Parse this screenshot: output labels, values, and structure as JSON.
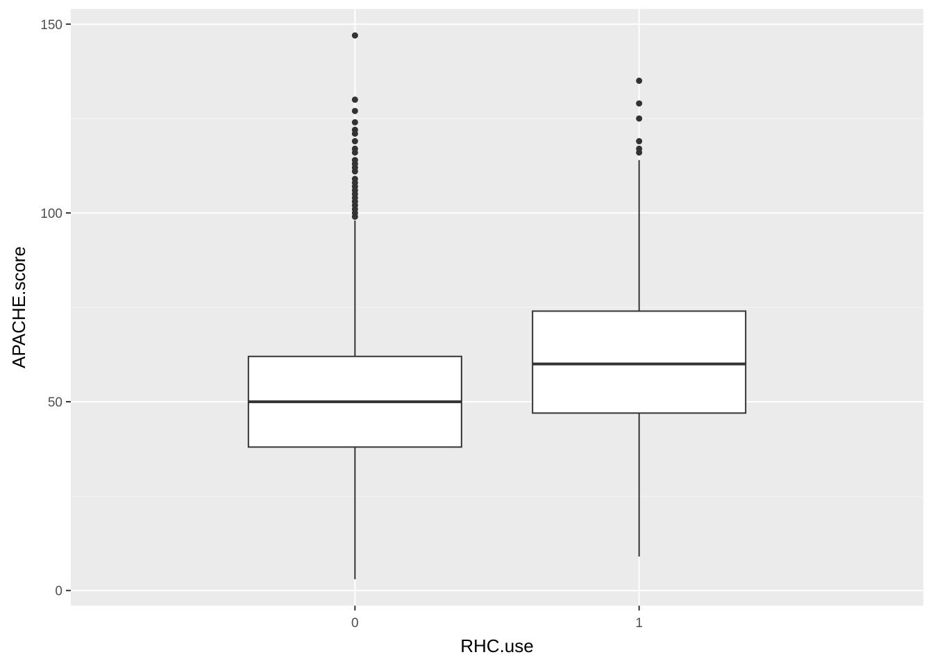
{
  "chart_data": {
    "type": "box",
    "title": "",
    "xlabel": "RHC.use",
    "ylabel": "APACHE.score",
    "categories": [
      "0",
      "1"
    ],
    "ylim": [
      -4,
      154
    ],
    "y_ticks": [
      0,
      50,
      100,
      150
    ],
    "y_tick_labels": [
      "0",
      "50",
      "100",
      "150"
    ],
    "grid": true,
    "boxes": [
      {
        "category": "0",
        "whisker_low": 3,
        "q1": 38,
        "median": 50,
        "q3": 62,
        "whisker_high": 98,
        "outliers": [
          99,
          100,
          101,
          102,
          103,
          104,
          105,
          106,
          107,
          108,
          109,
          111,
          112,
          113,
          114,
          116,
          117,
          119,
          121,
          122,
          124,
          127,
          130,
          147
        ]
      },
      {
        "category": "1",
        "whisker_low": 9,
        "q1": 47,
        "median": 60,
        "q3": 74,
        "whisker_high": 114,
        "outliers": [
          116,
          117,
          119,
          125,
          129,
          135
        ]
      }
    ],
    "colors": {
      "panel_background": "#ebebeb",
      "grid_major": "#ffffff",
      "grid_minor": "#f5f5f5",
      "box_fill": "#ffffff",
      "box_line": "#333333",
      "tick_text": "#4d4d4d",
      "axis_title": "#000000"
    }
  }
}
